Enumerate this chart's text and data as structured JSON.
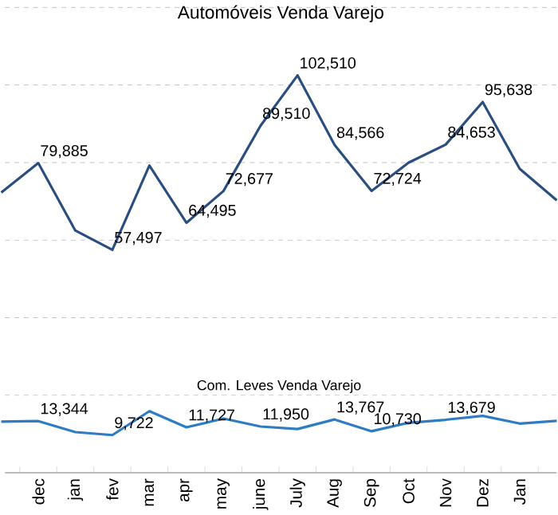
{
  "chart_data": {
    "type": "line",
    "title": "Automóveis Venda Varejo",
    "categories": [
      null,
      "dec",
      "jan",
      "fev",
      "mar",
      "apr",
      "may",
      "june",
      "July",
      "Aug",
      "Sep",
      "Oct",
      "Nov",
      "Dez",
      "Jan",
      null
    ],
    "series": [
      {
        "color": "#2a4f7f",
        "values": [
          72300,
          79885,
          62500,
          57497,
          79250,
          64495,
          72677,
          89510,
          102510,
          84566,
          72724,
          80000,
          84653,
          95638,
          78400,
          70300
        ],
        "value_labels": [
          null,
          "79,885",
          null,
          "57,497",
          null,
          "64,495",
          "72,677",
          "89,510",
          "102,510",
          "84,566",
          "72,724",
          null,
          "84,653",
          "95,638",
          null,
          null
        ]
      },
      {
        "name": "Com. Leves Venda Varejo",
        "color": "#2e7cc4",
        "values": [
          13200,
          13344,
          10500,
          9722,
          15900,
          11727,
          14000,
          11950,
          11300,
          13767,
          10730,
          12900,
          13679,
          14700,
          12700,
          13400
        ],
        "value_labels": [
          null,
          "13,344",
          null,
          "9,722",
          null,
          "11,727",
          null,
          "11,950",
          null,
          "13,767",
          "10,730",
          null,
          "13,679",
          null,
          null,
          null
        ]
      }
    ],
    "tick_labels": "x",
    "grid": "y",
    "marker": "none",
    "line_style": "solid"
  }
}
